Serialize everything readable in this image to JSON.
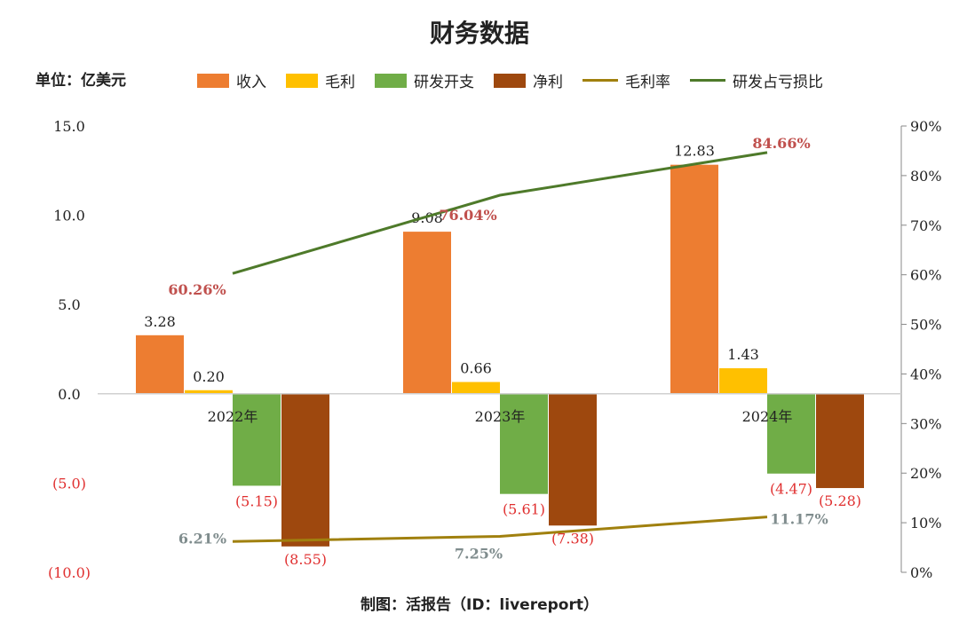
{
  "title": "财务数据",
  "unit": "单位：亿美元",
  "footer": "制图：活报告（ID：livereport）",
  "colors": {
    "revenue": "#ED7D31",
    "gross_profit": "#FFC000",
    "rd": "#70AD47",
    "net_profit": "#9E480E",
    "margin_line": "#A0800E",
    "rd_ratio_line": "#4E7A2A",
    "neg_label": "#E03030",
    "ratio_label": "#C0504D",
    "margin_label": "#7F8C8D"
  },
  "chart_data": {
    "type": "bar",
    "title": "财务数据",
    "categories": [
      "2022年",
      "2023年",
      "2024年"
    ],
    "ylim": [
      -10,
      15
    ],
    "y_ticks": [
      "15.0",
      "10.0",
      "5.0",
      "0.0",
      "(5.0)",
      "(10.0)"
    ],
    "y_tick_values": [
      15,
      10,
      5,
      0,
      -5,
      -10
    ],
    "y2lim": [
      0,
      90
    ],
    "y2_ticks": [
      "90%",
      "80%",
      "70%",
      "60%",
      "50%",
      "40%",
      "30%",
      "20%",
      "10%",
      "0%"
    ],
    "y2_tick_values": [
      90,
      80,
      70,
      60,
      50,
      40,
      30,
      20,
      10,
      0
    ],
    "series": [
      {
        "name": "收入",
        "type": "bar",
        "values": [
          3.28,
          9.08,
          12.83
        ],
        "labels": [
          "3.28",
          "9.08",
          "12.83"
        ]
      },
      {
        "name": "毛利",
        "type": "bar",
        "values": [
          0.2,
          0.66,
          1.43
        ],
        "labels": [
          "0.20",
          "0.66",
          "1.43"
        ]
      },
      {
        "name": "研发开支",
        "type": "bar",
        "values": [
          -5.15,
          -5.61,
          -4.47
        ],
        "labels": [
          "(5.15)",
          "(5.61)",
          "(4.47)"
        ]
      },
      {
        "name": "净利",
        "type": "bar",
        "values": [
          -8.55,
          -7.38,
          -5.28
        ],
        "labels": [
          "(8.55)",
          "(7.38)",
          "(5.28)"
        ]
      },
      {
        "name": "毛利率",
        "type": "line",
        "axis": "right",
        "values": [
          6.21,
          7.25,
          11.17
        ],
        "labels": [
          "6.21%",
          "7.25%",
          "11.17%"
        ]
      },
      {
        "name": "研发占亏损比",
        "type": "line",
        "axis": "right",
        "values": [
          60.26,
          76.04,
          84.66
        ],
        "labels": [
          "60.26%",
          "76.04%",
          "84.66%"
        ]
      }
    ]
  }
}
